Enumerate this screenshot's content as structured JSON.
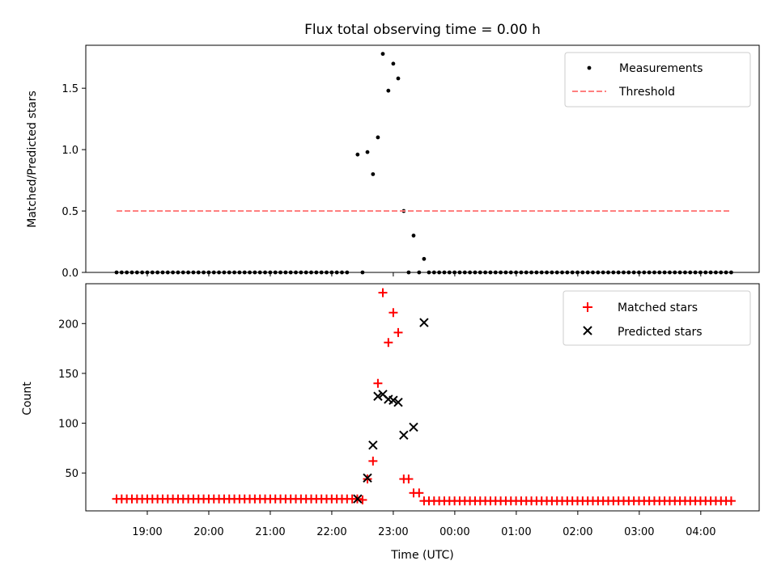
{
  "chart_data": [
    {
      "type": "scatter",
      "title": "Flux total observing time = 0.00 h",
      "xlabel": "",
      "ylabel": "Matched/Predicted stars",
      "ylim": [
        0,
        1.85
      ],
      "yticks": [
        {
          "value": 0,
          "label": "0.0"
        },
        {
          "value": 0.5,
          "label": "0.5"
        },
        {
          "value": 1.0,
          "label": "1.0"
        },
        {
          "value": 1.5,
          "label": "1.5"
        }
      ],
      "legend": {
        "position": "top-right",
        "entries": [
          "Measurements",
          "Threshold"
        ]
      },
      "series": [
        {
          "name": "Measurements",
          "color": "#000000",
          "marker": "dot",
          "points": [
            [
              22.42,
              0.96
            ],
            [
              22.58,
              0.98
            ],
            [
              22.67,
              0.8
            ],
            [
              22.75,
              1.1
            ],
            [
              22.83,
              1.78
            ],
            [
              22.92,
              1.48
            ],
            [
              23.0,
              1.7
            ],
            [
              23.08,
              1.58
            ],
            [
              23.17,
              0.5
            ],
            [
              23.33,
              0.3
            ],
            [
              23.5,
              0.11
            ],
            [
              22.5,
              0.0
            ],
            [
              23.25,
              0.0
            ],
            [
              23.42,
              0.0
            ]
          ],
          "zero_points": {
            "from": 18.5,
            "to": 22.33,
            "step": 0.0833,
            "value": 0.0
          },
          "zero_points_after": {
            "from": 23.58,
            "to": 28.5,
            "step": 0.0833,
            "value": 0.0
          }
        },
        {
          "name": "Threshold",
          "color": "#ff7f7f",
          "style": "dashed",
          "points": [
            [
              18.5,
              0.5
            ],
            [
              28.5,
              0.5
            ]
          ]
        }
      ]
    },
    {
      "type": "scatter",
      "title": "",
      "xlabel": "Time (UTC)",
      "ylabel": "Count",
      "ylim": [
        12,
        240
      ],
      "yticks": [
        {
          "value": 50,
          "label": "50"
        },
        {
          "value": 100,
          "label": "100"
        },
        {
          "value": 150,
          "label": "150"
        },
        {
          "value": 200,
          "label": "200"
        }
      ],
      "xticks": [
        {
          "value": 19,
          "label": "19:00"
        },
        {
          "value": 20,
          "label": "20:00"
        },
        {
          "value": 21,
          "label": "21:00"
        },
        {
          "value": 22,
          "label": "22:00"
        },
        {
          "value": 23,
          "label": "23:00"
        },
        {
          "value": 24,
          "label": "00:00"
        },
        {
          "value": 25,
          "label": "01:00"
        },
        {
          "value": 26,
          "label": "02:00"
        },
        {
          "value": 27,
          "label": "03:00"
        },
        {
          "value": 28,
          "label": "04:00"
        }
      ],
      "legend": {
        "position": "top-right",
        "entries": [
          "Matched stars",
          "Predicted stars"
        ]
      },
      "series": [
        {
          "name": "Matched stars",
          "color": "#ff0000",
          "marker": "plus",
          "points": [
            [
              22.5,
              23
            ],
            [
              22.58,
              44
            ],
            [
              22.67,
              62
            ],
            [
              22.75,
              140
            ],
            [
              22.83,
              231
            ],
            [
              22.92,
              181
            ],
            [
              23.0,
              211
            ],
            [
              23.08,
              191
            ],
            [
              23.17,
              44
            ],
            [
              23.25,
              44
            ],
            [
              23.33,
              30
            ],
            [
              23.42,
              30
            ],
            [
              23.5,
              22
            ]
          ],
          "baseline_before": {
            "from": 18.5,
            "to": 22.42,
            "step": 0.0833,
            "value": 24
          },
          "baseline_after": {
            "from": 23.58,
            "to": 28.5,
            "step": 0.0833,
            "value": 22
          }
        },
        {
          "name": "Predicted stars",
          "color": "#000000",
          "marker": "x",
          "points": [
            [
              22.42,
              24
            ],
            [
              22.58,
              45
            ],
            [
              22.67,
              78
            ],
            [
              22.75,
              127
            ],
            [
              22.83,
              129
            ],
            [
              22.92,
              124
            ],
            [
              23.0,
              123
            ],
            [
              23.08,
              121
            ],
            [
              23.17,
              88
            ],
            [
              23.33,
              96
            ],
            [
              23.5,
              201
            ]
          ]
        }
      ]
    }
  ],
  "xlim": [
    18.0,
    28.95
  ]
}
